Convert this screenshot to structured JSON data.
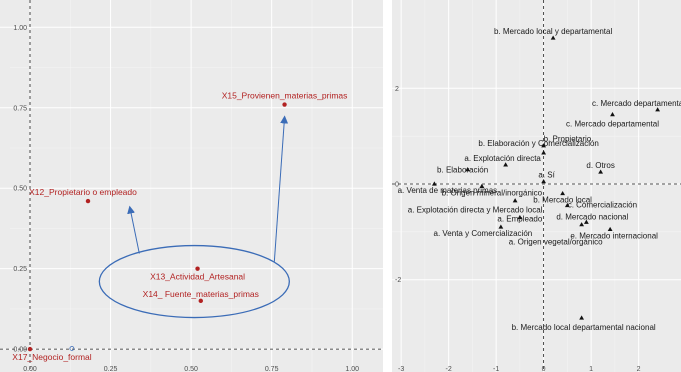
{
  "colors": {
    "panel_bg": "#ebebeb",
    "grid_major": "#ffffff",
    "grid_minor": "#f4f4f4",
    "variable_red": "#b22222",
    "annotation_blue": "#3b6cb7",
    "point_black": "#111111",
    "dashed_axis": "#222222"
  },
  "chart_data": [
    {
      "type": "scatter",
      "xlim": [
        0,
        1.08
      ],
      "ylim": [
        -0.04,
        1.06
      ],
      "xticks": [
        "0.00",
        "0.25",
        "0.50",
        "0.75",
        "1.00"
      ],
      "xtick_values": [
        0,
        0.25,
        0.5,
        0.75,
        1.0
      ],
      "yticks": [
        "0.00",
        "0.25",
        "0.50",
        "0.75",
        "1.00"
      ],
      "ytick_values": [
        0,
        0.25,
        0.5,
        0.75,
        1.0
      ],
      "grid": true,
      "reference_lines": {
        "x": 0,
        "y": 0
      },
      "points": [
        {
          "label": "X15_Provienen_materias_primas",
          "x": 0.79,
          "y": 0.76
        },
        {
          "label": "X12_Propietario o empleado",
          "x": 0.18,
          "y": 0.46
        },
        {
          "label": "X13_Actividad_Artesanal",
          "x": 0.52,
          "y": 0.25
        },
        {
          "label": "X14_ Fuente_materias_primas",
          "x": 0.53,
          "y": 0.15
        },
        {
          "label": "X17_Negocio_formal",
          "x": 0.0,
          "y": 0.0
        }
      ],
      "annotation": {
        "type": "ellipse-with-arrows",
        "center": [
          0.51,
          0.21
        ],
        "arrow_targets": [
          [
            0.31,
            0.44
          ],
          [
            0.79,
            0.72
          ]
        ]
      }
    },
    {
      "type": "scatter",
      "xlim": [
        -3.15,
        2.85
      ],
      "ylim": [
        -3.72,
        3.72
      ],
      "xticks": [
        "-3",
        "-2",
        "-1",
        "0",
        "1",
        "2"
      ],
      "xtick_values": [
        -3,
        -2,
        -1,
        0,
        1,
        2
      ],
      "yticks": [
        "2",
        "0",
        "-2"
      ],
      "ytick_values": [
        2,
        0,
        -2
      ],
      "grid": true,
      "reference_lines": {
        "x": 0,
        "y": 0
      },
      "points": [
        {
          "label": "b. Mercado local y departamental",
          "x": 0.2,
          "y": 3.05
        },
        {
          "label": "c. Mercado departamental y nacional",
          "x": 2.4,
          "y": 1.55
        },
        {
          "label": "c. Mercado departamental",
          "x": 1.45,
          "y": 1.45
        },
        {
          "label": "b. Propietario",
          "x": 0.0,
          "y": 0.8
        },
        {
          "label": "b. Elaboración y Comercialización",
          "x": 0.0,
          "y": 0.65
        },
        {
          "label": "a. Explotación directa",
          "x": -0.8,
          "y": 0.4
        },
        {
          "label": "b. Elaboración",
          "x": -1.6,
          "y": 0.3
        },
        {
          "label": "d. Otros",
          "x": 1.2,
          "y": 0.25
        },
        {
          "label": "a. Sí",
          "x": 0.0,
          "y": 0.05
        },
        {
          "label": "a. Venta de materias primas",
          "x": -2.3,
          "y": 0.0
        },
        {
          "label": "b. Origen mineral/inorgánico",
          "x": -1.3,
          "y": -0.05
        },
        {
          "label": "b. Mercado local",
          "x": 0.4,
          "y": -0.2
        },
        {
          "label": "a. Explotación directa y Mercado local",
          "x": -0.6,
          "y": -0.35
        },
        {
          "label": "c. Comercialización",
          "x": 0.5,
          "y": -0.45
        },
        {
          "label": "a. Empleado",
          "x": -0.5,
          "y": -0.7
        },
        {
          "label": "d. Mercado nacional",
          "x": 0.9,
          "y": -0.8
        },
        {
          "label": "a. Venta y Comercialización",
          "x": -0.9,
          "y": -0.9
        },
        {
          "label": "e. Mercado internacional",
          "x": 1.4,
          "y": -0.95
        },
        {
          "label": "a. Origen vegetal/orgánico",
          "x": 0.8,
          "y": -0.85
        },
        {
          "label": "b. Mercado local departamental nacional",
          "x": 0.8,
          "y": -2.8
        }
      ]
    }
  ]
}
